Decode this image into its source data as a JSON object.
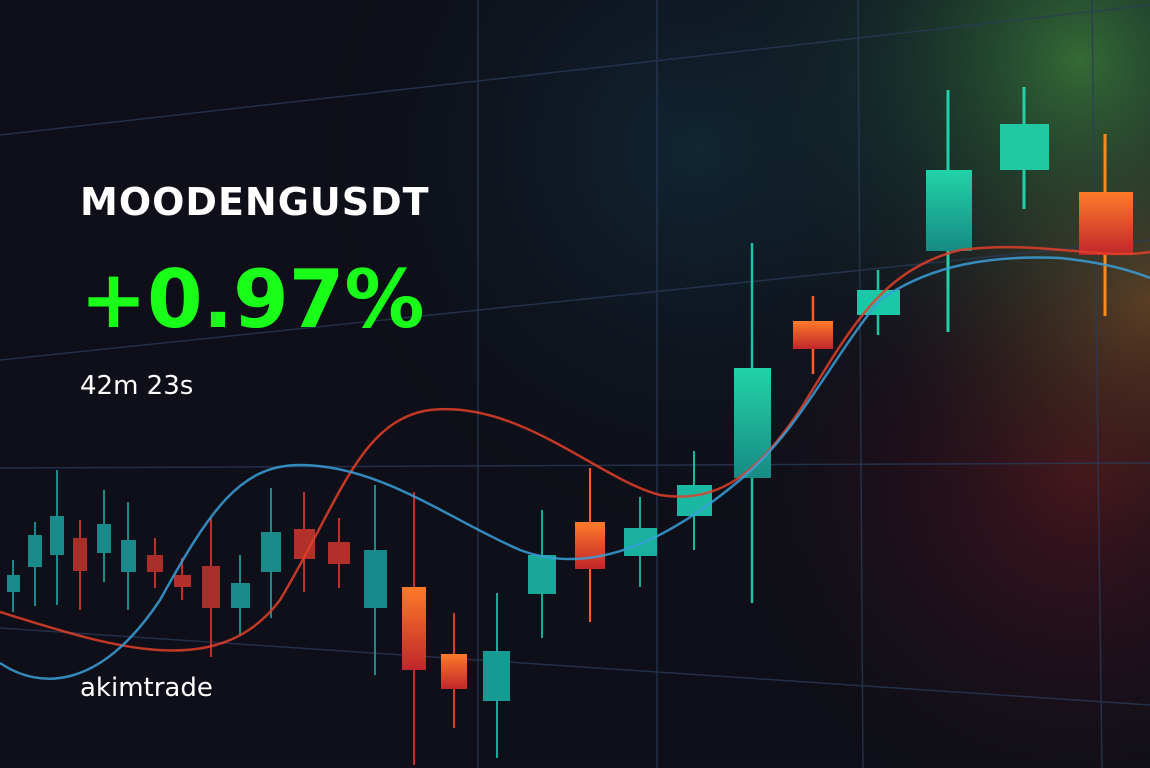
{
  "ticker": {
    "symbol": "MOODENGUSDT",
    "change": "+0.97%",
    "timer": "42m 23s",
    "brand": "akimtrade"
  },
  "colors": {
    "background": "#0e0f18",
    "change_positive": "#1aff1a",
    "bull_candle": "#1fc7a0",
    "bear_candle": "#ff6a2a",
    "grid": "#2a3b5a",
    "ma_fast": "#e8452a",
    "ma_slow": "#3a9fd8"
  }
}
